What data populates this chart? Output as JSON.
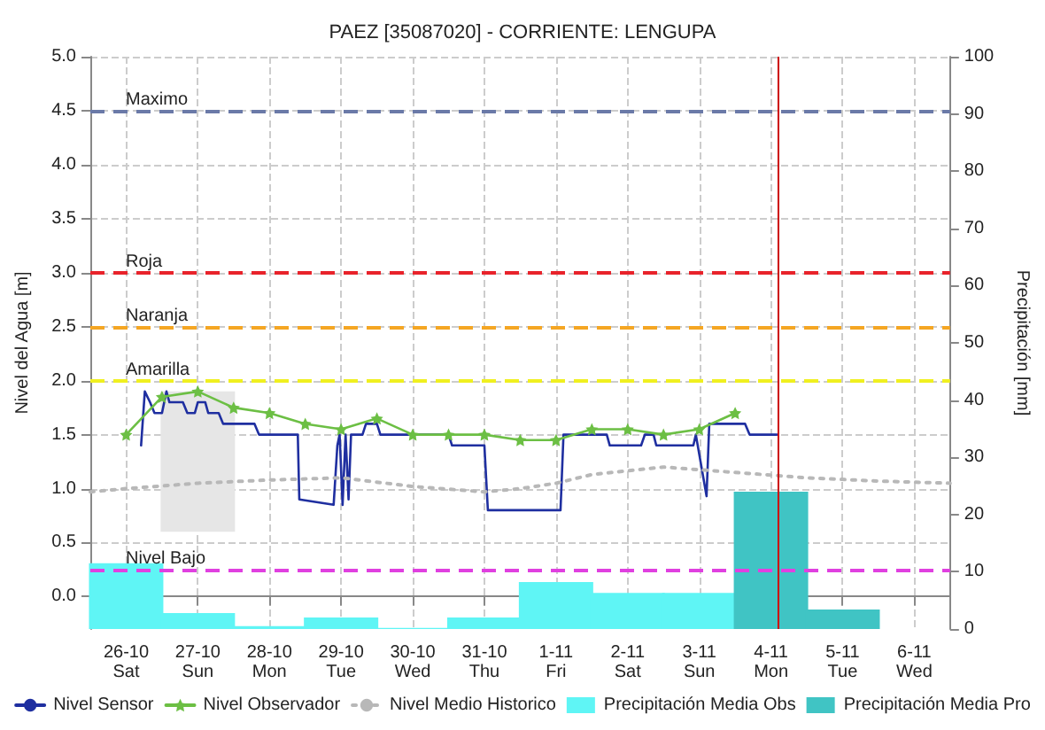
{
  "chart_data": {
    "type": "line",
    "title": "PAEZ [35087020] - CORRIENTE: LENGUPA",
    "ylabel": "Nivel del Agua [m]",
    "y2label": "Precipitación [mm]",
    "xlim": [
      "--10-25T12:00",
      "--11-06T12:00"
    ],
    "xticks": [
      {
        "value": "--10-26",
        "label": "26-10\nSat"
      },
      {
        "value": "--10-27",
        "label": "27-10\nSun"
      },
      {
        "value": "--10-28",
        "label": "28-10\nMon"
      },
      {
        "value": "--10-29",
        "label": "29-10\nTue"
      },
      {
        "value": "--10-30",
        "label": "30-10\nWed"
      },
      {
        "value": "--10-31",
        "label": "31-10\nThu"
      },
      {
        "value": "--11-01",
        "label": "1-11\nFri"
      },
      {
        "value": "--11-02",
        "label": "2-11\nSat"
      },
      {
        "value": "--11-03",
        "label": "3-11\nSun"
      },
      {
        "value": "--11-04",
        "label": "4-11\nMon"
      },
      {
        "value": "--11-05",
        "label": "5-11\nTue"
      },
      {
        "value": "--11-06",
        "label": "6-11\nWed"
      }
    ],
    "ylim": [
      -0.3,
      5.0
    ],
    "yticks": [
      {
        "value": 0,
        "label": "0.0"
      },
      {
        "value": 0.5,
        "label": "0.5"
      },
      {
        "value": 1,
        "label": "1.0"
      },
      {
        "value": 1.5,
        "label": "1.5"
      },
      {
        "value": 2,
        "label": "2.0"
      },
      {
        "value": 2.5,
        "label": "2.5"
      },
      {
        "value": 3,
        "label": "3.0"
      },
      {
        "value": 3.5,
        "label": "3.5"
      },
      {
        "value": 4,
        "label": "4.0"
      },
      {
        "value": 4.5,
        "label": "4.5"
      },
      {
        "value": 5,
        "label": "5.0"
      }
    ],
    "y2lim": [
      0,
      100
    ],
    "y2ticks": [
      0,
      10,
      20,
      30,
      40,
      50,
      60,
      70,
      80,
      90,
      100
    ],
    "grid": true,
    "legend": "bottom",
    "series": [
      {
        "type": "bar",
        "color": "#e6e6e6",
        "x": [
          "--10-27"
        ],
        "base": [
          0.6
        ],
        "values": [
          1.3
        ]
      },
      {
        "name": "Nivel Sensor",
        "color": "#1f2fa0",
        "line_style": "solid",
        "marker": "none",
        "x": [
          "--10-26T05:00",
          "--10-26T06:15",
          "--10-26T08:00",
          "--10-26T09:30",
          "--10-26T12:00",
          "--10-26T13:30",
          "--10-26T14:30",
          "--10-26T19:00",
          "--10-26T20:30",
          "--10-26T23:00",
          "--10-27T00:00",
          "--10-27T02:30",
          "--10-27T03:30",
          "--10-27T07:00",
          "--10-27T08:30",
          "--10-27T19:00",
          "--10-27T20:30",
          "--10-28T09:30",
          "--10-28T10:00",
          "--10-28T21:30",
          "--10-28T22:45",
          "--10-28T23:30",
          "--10-29T00:30",
          "--10-29T01:30",
          "--10-29T02:30",
          "--10-29T03:20",
          "--10-29T07:10",
          "--10-29T08:20",
          "--10-29T12:00",
          "--10-29T13:10",
          "--10-30T12:00",
          "--10-30T13:10",
          "--10-31T00:00",
          "--10-31T01:10",
          "--11-01T01:30",
          "--11-01T02:30",
          "--11-01T17:00",
          "--11-01T18:00",
          "--11-02T04:30",
          "--11-02T05:45",
          "--11-02T08:40",
          "--11-02T09:35",
          "--11-02T12:30",
          "--11-02T22:00",
          "--11-02T22:50",
          "--11-03T02:25",
          "--11-03T03:20",
          "--11-03T15:20",
          "--11-03T16:50",
          "--11-04T02:00"
        ],
        "values": [
          1.4,
          1.9,
          1.8,
          1.7,
          1.7,
          1.9,
          1.8,
          1.8,
          1.7,
          1.7,
          1.8,
          1.8,
          1.7,
          1.7,
          1.6,
          1.6,
          1.5,
          1.5,
          0.9,
          0.85,
          1.4,
          1.5,
          0.85,
          1.5,
          0.9,
          1.5,
          1.5,
          1.6,
          1.6,
          1.5,
          1.5,
          1.4,
          1.4,
          0.8,
          0.8,
          1.5,
          1.5,
          1.4,
          1.4,
          1.5,
          1.5,
          1.4,
          1.4,
          1.4,
          1.5,
          0.93,
          1.6,
          1.6,
          1.5,
          1.5
        ]
      },
      {
        "name": "Nivel Observador",
        "color": "#6cbf44",
        "line_style": "solid",
        "marker": "star",
        "x": [
          "--10-26T00:00",
          "--10-26T12:00",
          "--10-27T00:00",
          "--10-27T12:00",
          "--10-28T00:00",
          "--10-28T12:00",
          "--10-29T00:00",
          "--10-29T12:00",
          "--10-30T00:00",
          "--10-30T12:00",
          "--10-31T00:00",
          "--10-31T12:00",
          "--11-01T00:00",
          "--11-01T12:00",
          "--11-02T00:00",
          "--11-02T12:00",
          "--11-03T00:00",
          "--11-03T12:00"
        ],
        "values": [
          1.5,
          1.85,
          1.9,
          1.75,
          1.7,
          1.6,
          1.55,
          1.65,
          1.5,
          1.5,
          1.5,
          1.45,
          1.45,
          1.55,
          1.55,
          1.5,
          1.55,
          1.7
        ]
      },
      {
        "name": "Nivel Medio Historico",
        "color": "#b8b8b8",
        "line_style": "dotted",
        "marker": "none",
        "x": [
          "--10-25T12:00",
          "--10-26T00:00",
          "--10-27T00:00",
          "--10-28T00:00",
          "--10-29T00:00",
          "--10-30T00:00",
          "--10-31T00:00",
          "--10-31T12:00",
          "--11-01T00:00",
          "--11-01T12:00",
          "--11-02T12:00",
          "--11-03T12:00",
          "--11-04T12:00",
          "--11-05T12:00",
          "--11-06T12:00"
        ],
        "values": [
          0.97,
          1.0,
          1.05,
          1.08,
          1.1,
          1.02,
          0.97,
          1.0,
          1.05,
          1.13,
          1.2,
          1.15,
          1.1,
          1.07,
          1.05
        ]
      },
      {
        "type": "bar",
        "axis": "y2",
        "name": "Precipitación Media Obs",
        "color": "#5ff5f5",
        "x": [
          "--10-26",
          "--10-27",
          "--10-28",
          "--10-29",
          "--10-30",
          "--10-31",
          "--11-01",
          "--11-02",
          "--11-03"
        ],
        "values": [
          11.5,
          2.8,
          0.5,
          2.0,
          0.2,
          2.0,
          8.2,
          6.3,
          6.3
        ]
      },
      {
        "type": "bar",
        "axis": "y2",
        "name": "Precipitación Media Pro",
        "color": "#40c4c4",
        "x": [
          "--11-04",
          "--11-05"
        ],
        "values": [
          24,
          3.4
        ]
      }
    ],
    "ref_lines": [
      {
        "axis": "y",
        "value": 4.5,
        "label": "Maximo",
        "color": "#6b7aa8",
        "line_style": "dashed"
      },
      {
        "axis": "y",
        "value": 3.0,
        "label": "Roja",
        "color": "#e8232b",
        "line_style": "dashed"
      },
      {
        "axis": "y",
        "value": 2.5,
        "label": "Naranja",
        "color": "#f5a623",
        "line_style": "dashed"
      },
      {
        "axis": "y",
        "value": 2.0,
        "label": "Amarilla",
        "color": "#f0f020",
        "line_style": "dashed"
      },
      {
        "axis": "y",
        "value": 0.25,
        "label": "Nivel Bajo",
        "color": "#e040e0",
        "line_style": "dashed"
      },
      {
        "axis": "x",
        "value": "--11-04T02:25",
        "label": null,
        "color": "#cc0000",
        "line_style": "solid"
      }
    ]
  }
}
